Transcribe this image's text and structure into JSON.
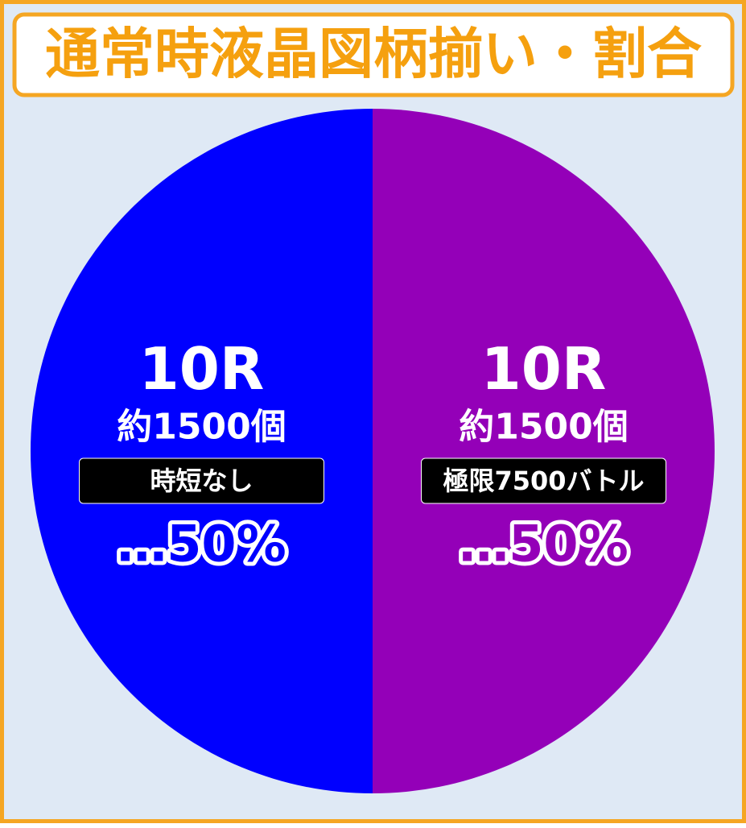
{
  "chart_data": {
    "type": "pie",
    "title": "通常時液晶図柄揃い・割合",
    "categories": [
      "時短なし",
      "極限7500バトル"
    ],
    "rounds": [
      "10R",
      "10R"
    ],
    "payout": [
      "約1500個",
      "約1500個"
    ],
    "values": [
      50,
      50
    ],
    "value_labels": [
      "…50%",
      "…50%"
    ],
    "colors": [
      "#0000ff",
      "#9400b8"
    ]
  }
}
